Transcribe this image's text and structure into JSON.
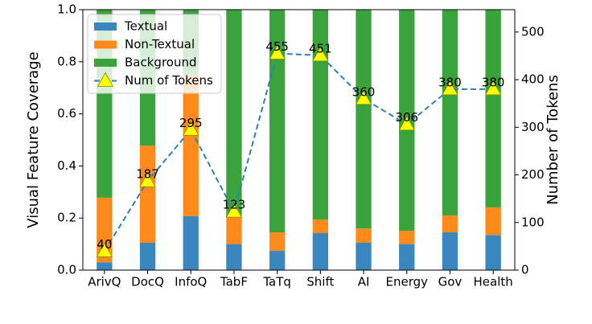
{
  "chart_data": {
    "type": "bar",
    "stacked": true,
    "categories": [
      "ArivQ",
      "DocQ",
      "InfoQ",
      "TabF",
      "TaTq",
      "Shift",
      "AI",
      "Energy",
      "Gov",
      "Health"
    ],
    "series": [
      {
        "name": "Textual",
        "color": "#3a87c0",
        "values": [
          0.03,
          0.105,
          0.207,
          0.1,
          0.074,
          0.142,
          0.105,
          0.1,
          0.145,
          0.135
        ]
      },
      {
        "name": "Non-Textual",
        "color": "#ff8a1c",
        "values": [
          0.248,
          0.373,
          0.543,
          0.104,
          0.071,
          0.052,
          0.055,
          0.051,
          0.065,
          0.106
        ]
      },
      {
        "name": "Background",
        "color": "#3ba33b",
        "values": [
          0.722,
          0.522,
          0.25,
          0.796,
          0.855,
          0.806,
          0.84,
          0.849,
          0.79,
          0.759
        ]
      },
      {
        "name": "Num of Tokens",
        "type": "line",
        "axis": "y2",
        "color": "#2f7fb8",
        "marker_color": "#ffff00",
        "values": [
          40,
          187,
          295,
          123,
          455,
          451,
          360,
          306,
          380,
          380
        ]
      }
    ],
    "ylabel": "Visual Feature Coverage",
    "y2label": "Number of Tokens",
    "ylim": [
      0,
      1
    ],
    "yticks": [
      {
        "value": 0,
        "label": "0.0"
      },
      0.2,
      0.4,
      0.6,
      0.8,
      {
        "value": 1,
        "label": "1.0"
      }
    ],
    "y2lim": [
      0,
      547
    ],
    "y2ticks": [
      0,
      100,
      200,
      300,
      400,
      500
    ],
    "legend": "upper-left"
  }
}
